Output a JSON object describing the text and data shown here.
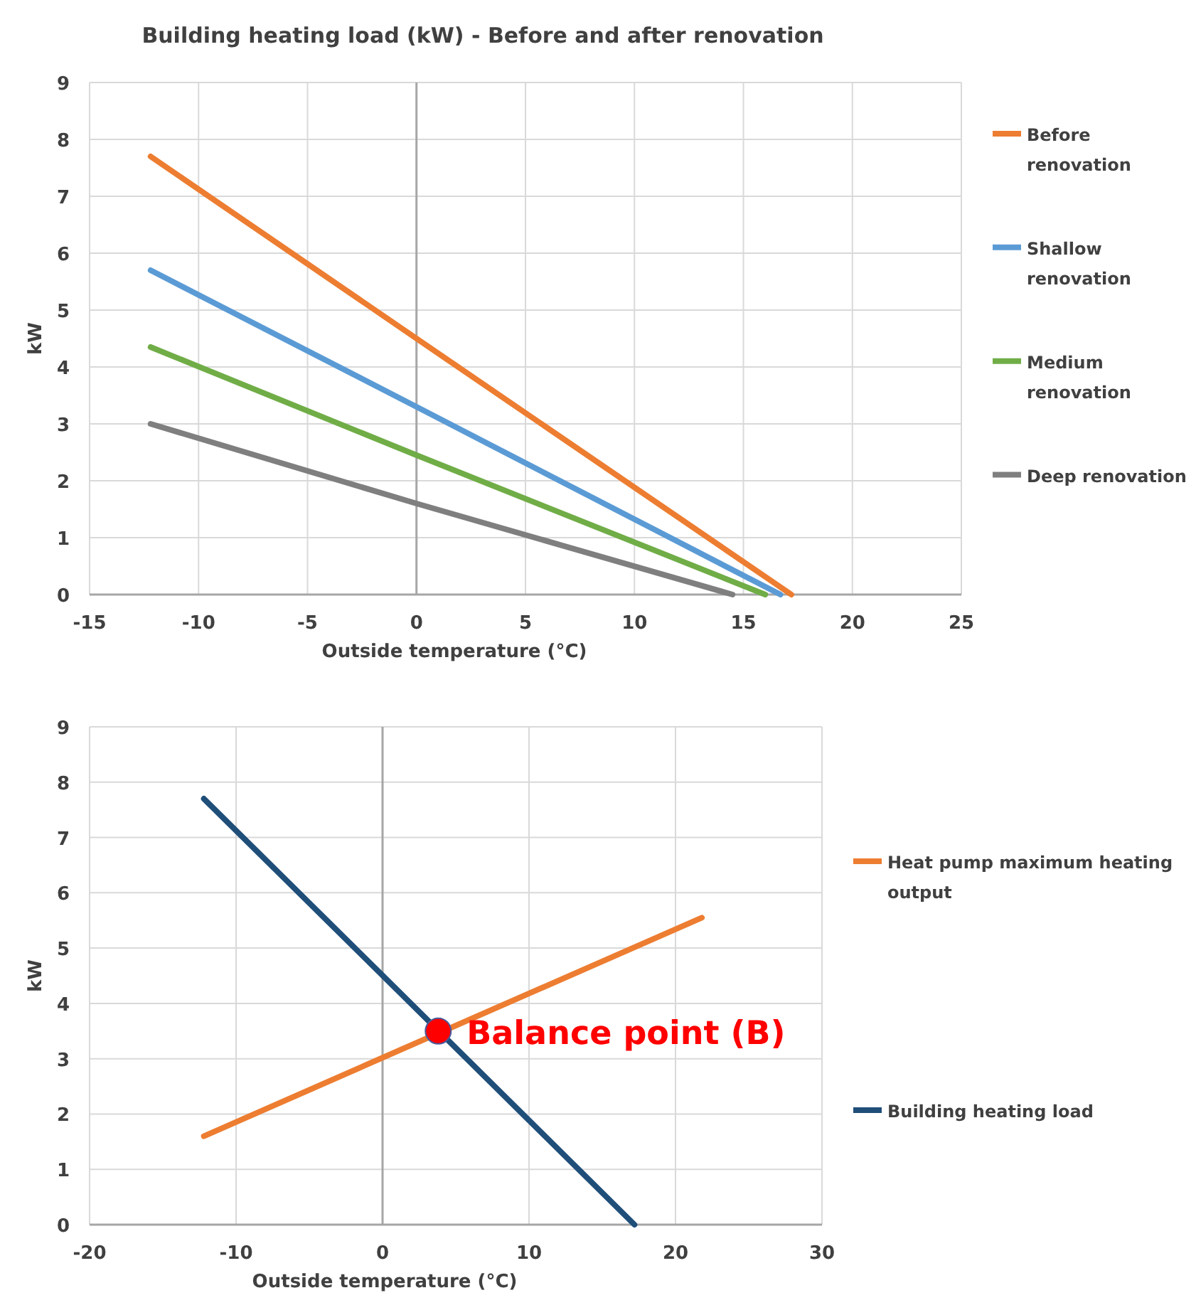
{
  "chart_data": [
    {
      "type": "line",
      "title": "Building heating load (kW)  - Before and after renovation",
      "xlabel": "Outside temperature (°C)",
      "ylabel": "kW",
      "xlim": [
        -15,
        25
      ],
      "xticks": [
        -15,
        -10,
        -5,
        0,
        5,
        10,
        15,
        20,
        25
      ],
      "ylim": [
        0,
        9
      ],
      "yticks": [
        0,
        1,
        2,
        3,
        4,
        5,
        6,
        7,
        8,
        9
      ],
      "grid": true,
      "legend": "right",
      "marker": "none",
      "line_style": "solid",
      "series": [
        {
          "name": "Before renovation",
          "color": "#ed7d31",
          "x": [
            -12.2,
            0,
            17.2
          ],
          "values": [
            7.7,
            4.5,
            0
          ]
        },
        {
          "name": "Shallow renovation",
          "color": "#5b9bd5",
          "x": [
            -12.2,
            0,
            16.7
          ],
          "values": [
            5.7,
            3.3,
            0
          ]
        },
        {
          "name": "Medium renovation",
          "color": "#70ad47",
          "x": [
            -12.2,
            0,
            16.0
          ],
          "values": [
            4.35,
            2.45,
            0
          ]
        },
        {
          "name": "Deep renovation",
          "color": "#7f7f7f",
          "x": [
            -12.2,
            0,
            14.5
          ],
          "values": [
            3.0,
            1.6,
            0
          ]
        }
      ]
    },
    {
      "type": "line",
      "xlabel": "Outside temperature (°C)",
      "ylabel": "kW",
      "xlim": [
        -20,
        30
      ],
      "xticks": [
        -20,
        -10,
        0,
        10,
        20,
        30
      ],
      "ylim": [
        0,
        9
      ],
      "yticks": [
        0,
        1,
        2,
        3,
        4,
        5,
        6,
        7,
        8,
        9
      ],
      "grid": true,
      "legend": "right",
      "marker": "none",
      "line_style": "solid",
      "annotations": [
        {
          "text": "Balance point (B)",
          "x": 3.8,
          "y": 3.5
        }
      ],
      "series": [
        {
          "name": "Heat pump maximum heating output",
          "color": "#ed7d31",
          "x": [
            -12.2,
            21.8
          ],
          "values": [
            1.6,
            5.55
          ]
        },
        {
          "name": "Building heating load",
          "color": "#1f4e79",
          "x": [
            -12.2,
            17.2
          ],
          "values": [
            7.7,
            0
          ]
        },
        {
          "type": "scatter",
          "color": "#ff0000",
          "marker": "circle",
          "x": [
            3.8
          ],
          "values": [
            3.5
          ]
        }
      ]
    }
  ]
}
